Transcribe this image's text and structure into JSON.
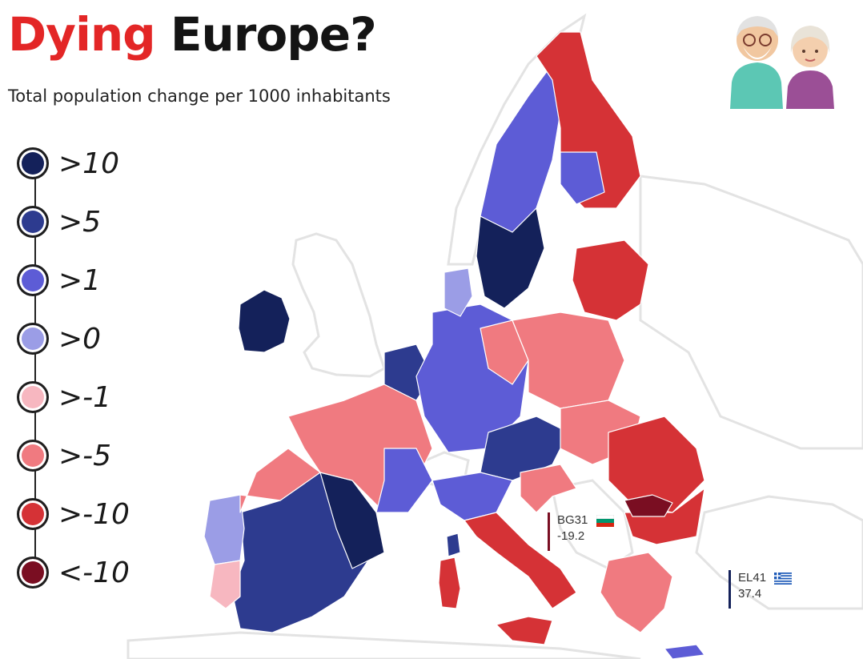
{
  "title": {
    "word1": "Dying",
    "word2": "Europe?"
  },
  "subtitle": "Total population change per 1000 inhabitants",
  "legend": [
    {
      "label": ">10",
      "color": "#14215a"
    },
    {
      "label": ">5",
      "color": "#2d3b8f"
    },
    {
      "label": ">1",
      "color": "#5d5cd6"
    },
    {
      "label": ">0",
      "color": "#9b9de6"
    },
    {
      "label": ">-1",
      "color": "#f7b7c0"
    },
    {
      "label": ">-5",
      "color": "#f07a80"
    },
    {
      "label": ">-10",
      "color": "#d53236"
    },
    {
      "label": "<-10",
      "color": "#7a0e22"
    }
  ],
  "callouts": [
    {
      "code": "BG31",
      "value": "-19.2",
      "bar_color": "#7a0e22",
      "flag": "bulgaria-flag-icon"
    },
    {
      "code": "EL41",
      "value": "37.4",
      "bar_color": "#14215a",
      "flag": "greece-flag-icon"
    }
  ],
  "colors": {
    "background": "#ffffff",
    "land_outline": "#e8e8e8",
    "title_accent": "#e32626",
    "title_dark": "#141414"
  },
  "icons": {
    "illustration": "elderly-couple-icon"
  },
  "map_regions": [
    {
      "name": "Ireland",
      "class": ">10"
    },
    {
      "name": "Iberia central",
      "class": ">5"
    },
    {
      "name": "Iberia east",
      "class": ">10"
    },
    {
      "name": "Portugal north",
      "class": ">0"
    },
    {
      "name": "Portugal south",
      "class": ">-1"
    },
    {
      "name": "Spain northwest",
      "class": ">-5"
    },
    {
      "name": "France",
      "class": ">-5"
    },
    {
      "name": "France east",
      "class": ">1"
    },
    {
      "name": "Benelux",
      "class": ">5"
    },
    {
      "name": "Germany",
      "class": ">1"
    },
    {
      "name": "Germany east",
      "class": ">-5"
    },
    {
      "name": "Austria",
      "class": ">5"
    },
    {
      "name": "Italy north",
      "class": ">1"
    },
    {
      "name": "Italy south",
      "class": ">-10"
    },
    {
      "name": "Sardinia",
      "class": ">-10"
    },
    {
      "name": "Sicily",
      "class": ">-10"
    },
    {
      "name": "Poland",
      "class": ">-5"
    },
    {
      "name": "Baltics",
      "class": ">-10"
    },
    {
      "name": "Sweden",
      "class": ">1"
    },
    {
      "name": "Sweden south",
      "class": ">10"
    },
    {
      "name": "Finland",
      "class": ">-10"
    },
    {
      "name": "Finland south",
      "class": ">1"
    },
    {
      "name": "Hungary Slovakia",
      "class": ">-5"
    },
    {
      "name": "Romania",
      "class": ">-10"
    },
    {
      "name": "Bulgaria",
      "class": ">-10"
    },
    {
      "name": "BG31",
      "class": "<-10"
    },
    {
      "name": "Croatia",
      "class": ">-5"
    },
    {
      "name": "Greece",
      "class": ">-5"
    },
    {
      "name": "Denmark",
      "class": ">0"
    },
    {
      "name": "Corsica",
      "class": ">5"
    },
    {
      "name": "Cyprus",
      "class": ">1"
    }
  ]
}
